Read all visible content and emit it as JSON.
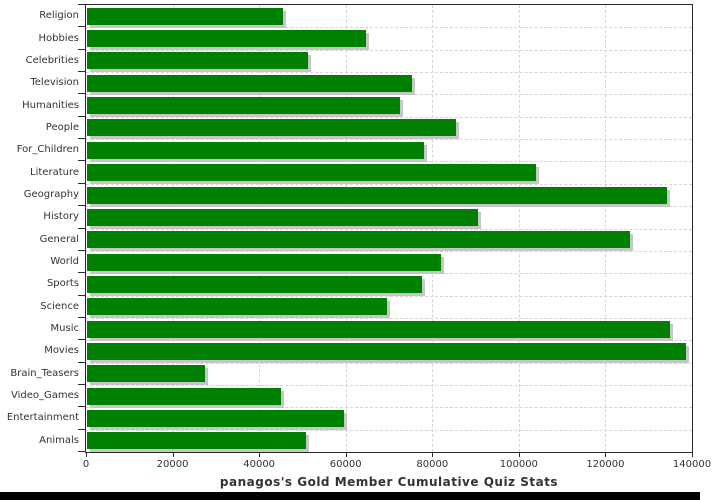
{
  "chart_data": {
    "type": "bar",
    "orientation": "horizontal",
    "title": "panagos's Gold Member Cumulative Quiz Stats",
    "xlabel": "",
    "ylabel": "",
    "categories": [
      "Religion",
      "Hobbies",
      "Celebrities",
      "Television",
      "Humanities",
      "People",
      "For_Children",
      "Literature",
      "Geography",
      "History",
      "General",
      "World",
      "Sports",
      "Science",
      "Music",
      "Movies",
      "Brain_Teasers",
      "Video_Games",
      "Entertainment",
      "Animals"
    ],
    "values": [
      45600,
      64700,
      51300,
      75300,
      72600,
      85400,
      78200,
      104000,
      134300,
      90600,
      125600,
      82000,
      77600,
      69500,
      135000,
      138700,
      27400,
      45000,
      59700,
      50800
    ],
    "xlim": [
      0,
      140000
    ],
    "x_ticks": [
      0,
      20000,
      40000,
      60000,
      80000,
      100000,
      120000,
      140000
    ],
    "x_tick_labels": [
      "0",
      "20000",
      "40000",
      "60000",
      "80000",
      "100000",
      "120000",
      "140000"
    ],
    "grid": "dashed-both-axes",
    "legend": "none",
    "bar_color": "#008000",
    "shadow_color": "#c6c6c6",
    "grid_color": "#d5d5d5",
    "axis_color": "#2a2a2a",
    "text_color": "#333333"
  }
}
